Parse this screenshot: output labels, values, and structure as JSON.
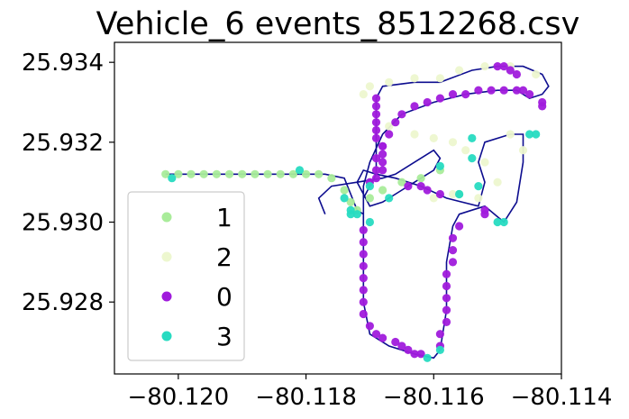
{
  "chart_data": {
    "type": "scatter",
    "title": "Vehicle_6 events_8512268.csv",
    "xlabel": "",
    "ylabel": "",
    "xlim": [
      -80.121,
      -80.114
    ],
    "ylim": [
      25.9262,
      25.9345
    ],
    "x_ticks": [
      "−80.120",
      "−80.118",
      "−80.116",
      "−80.114"
    ],
    "y_ticks": [
      "25.928",
      "25.930",
      "25.932",
      "25.934"
    ],
    "x_tick_values": [
      -80.12,
      -80.118,
      -80.116,
      -80.114
    ],
    "y_tick_values": [
      25.928,
      25.93,
      25.932,
      25.934
    ],
    "grid": false,
    "legend_position": "lower-left",
    "track": {
      "color": "#0d0d8f",
      "points": [
        [
          -80.1202,
          25.9312
        ],
        [
          -80.1195,
          25.9312
        ],
        [
          -80.1188,
          25.9312
        ],
        [
          -80.1182,
          25.9312
        ],
        [
          -80.1177,
          25.9312
        ],
        [
          -80.1174,
          25.9311
        ],
        [
          -80.1173,
          25.9307
        ],
        [
          -80.1172,
          25.9303
        ],
        [
          -80.1171,
          25.9302
        ],
        [
          -80.1171,
          25.9306
        ],
        [
          -80.117,
          25.9309
        ],
        [
          -80.1169,
          25.9312
        ],
        [
          -80.1169,
          25.9318
        ],
        [
          -80.1169,
          25.9325
        ],
        [
          -80.1169,
          25.9331
        ],
        [
          -80.1168,
          25.9334
        ],
        [
          -80.1163,
          25.9335
        ],
        [
          -80.1159,
          25.9335
        ],
        [
          -80.1154,
          25.9338
        ],
        [
          -80.115,
          25.9339
        ],
        [
          -80.1146,
          25.9339
        ],
        [
          -80.1143,
          25.9337
        ],
        [
          -80.1142,
          25.9334
        ],
        [
          -80.1143,
          25.9332
        ],
        [
          -80.1145,
          25.9331
        ],
        [
          -80.1147,
          25.9333
        ],
        [
          -80.115,
          25.9333
        ],
        [
          -80.1155,
          25.9332
        ],
        [
          -80.116,
          25.933
        ],
        [
          -80.1165,
          25.9327
        ],
        [
          -80.1168,
          25.9322
        ],
        [
          -80.117,
          25.9315
        ],
        [
          -80.1171,
          25.9309
        ],
        [
          -80.1171,
          25.93
        ],
        [
          -80.1171,
          25.929
        ],
        [
          -80.1171,
          25.928
        ],
        [
          -80.117,
          25.9272
        ],
        [
          -80.1167,
          25.9269
        ],
        [
          -80.1163,
          25.9267
        ],
        [
          -80.116,
          25.9266
        ],
        [
          -80.1159,
          25.9268
        ],
        [
          -80.1158,
          25.9278
        ],
        [
          -80.1158,
          25.929
        ],
        [
          -80.1157,
          25.9299
        ],
        [
          -80.1156,
          25.9302
        ],
        [
          -80.1154,
          25.9303
        ],
        [
          -80.1152,
          25.9304
        ],
        [
          -80.1149,
          25.93
        ],
        [
          -80.1147,
          25.9305
        ],
        [
          -80.1146,
          25.9315
        ],
        [
          -80.1146,
          25.9322
        ],
        [
          -80.1148,
          25.9322
        ],
        [
          -80.1152,
          25.932
        ],
        [
          -80.1153,
          25.9315
        ],
        [
          -80.1152,
          25.931
        ],
        [
          -80.1153,
          25.9304
        ],
        [
          -80.1158,
          25.9306
        ],
        [
          -80.1162,
          25.9309
        ],
        [
          -80.1166,
          25.9311
        ],
        [
          -80.1169,
          25.9312
        ],
        [
          -80.1171,
          25.9313
        ],
        [
          -80.1172,
          25.931
        ],
        [
          -80.117,
          25.9304
        ],
        [
          -80.1168,
          25.9305
        ],
        [
          -80.1165,
          25.9308
        ],
        [
          -80.1163,
          25.931
        ],
        [
          -80.1161,
          25.9312
        ],
        [
          -80.116,
          25.9313
        ],
        [
          -80.1159,
          25.9316
        ],
        [
          -80.116,
          25.9318
        ],
        [
          -80.1162,
          25.9316
        ],
        [
          -80.1164,
          25.9314
        ],
        [
          -80.1166,
          25.9312
        ],
        [
          -80.1168,
          25.9311
        ],
        [
          -80.1172,
          25.931
        ],
        [
          -80.1176,
          25.9309
        ],
        [
          -80.1178,
          25.9306
        ],
        [
          -80.1177,
          25.9302
        ]
      ]
    },
    "series": [
      {
        "name": "1",
        "color": "#a9ec9a",
        "points": [
          [
            -80.1202,
            25.9312
          ],
          [
            -80.12,
            25.9312
          ],
          [
            -80.1198,
            25.9312
          ],
          [
            -80.1196,
            25.9312
          ],
          [
            -80.1194,
            25.9312
          ],
          [
            -80.1192,
            25.9312
          ],
          [
            -80.119,
            25.9312
          ],
          [
            -80.1188,
            25.9312
          ],
          [
            -80.1186,
            25.9312
          ],
          [
            -80.1184,
            25.9312
          ],
          [
            -80.1182,
            25.9312
          ],
          [
            -80.118,
            25.9312
          ],
          [
            -80.1178,
            25.9312
          ],
          [
            -80.1176,
            25.9311
          ],
          [
            -80.1174,
            25.9308
          ],
          [
            -80.1173,
            25.9305
          ],
          [
            -80.1172,
            25.9303
          ],
          [
            -80.117,
            25.9306
          ],
          [
            -80.1168,
            25.9308
          ],
          [
            -80.1165,
            25.931
          ],
          [
            -80.1162,
            25.9311
          ],
          [
            -80.1159,
            25.9313
          ],
          [
            -80.1156,
            25.9307
          ]
        ]
      },
      {
        "name": "2",
        "color": "#edf7cf",
        "points": [
          [
            -80.1171,
            25.9332
          ],
          [
            -80.117,
            25.9334
          ],
          [
            -80.1167,
            25.9335
          ],
          [
            -80.1163,
            25.9336
          ],
          [
            -80.1159,
            25.9336
          ],
          [
            -80.1156,
            25.9338
          ],
          [
            -80.1152,
            25.9339
          ],
          [
            -80.1148,
            25.9339
          ],
          [
            -80.1144,
            25.9337
          ],
          [
            -80.1152,
            25.9315
          ],
          [
            -80.115,
            25.931
          ],
          [
            -80.1148,
            25.9322
          ],
          [
            -80.1146,
            25.9318
          ],
          [
            -80.1167,
            25.9324
          ],
          [
            -80.1163,
            25.9322
          ],
          [
            -80.116,
            25.9321
          ],
          [
            -80.1157,
            25.932
          ],
          [
            -80.1155,
            25.9318
          ],
          [
            -80.116,
            25.9306
          ],
          [
            -80.1157,
            25.9307
          ],
          [
            -80.1153,
            25.9306
          ]
        ]
      },
      {
        "name": "0",
        "color": "#a01bdc",
        "points": [
          [
            -80.1169,
            25.9331
          ],
          [
            -80.1169,
            25.9329
          ],
          [
            -80.1169,
            25.9327
          ],
          [
            -80.1169,
            25.9325
          ],
          [
            -80.1169,
            25.9323
          ],
          [
            -80.1169,
            25.9321
          ],
          [
            -80.1168,
            25.9319
          ],
          [
            -80.1168,
            25.9317
          ],
          [
            -80.1168,
            25.9315
          ],
          [
            -80.1168,
            25.9313
          ],
          [
            -80.1169,
            25.9311
          ],
          [
            -80.1171,
            25.9298
          ],
          [
            -80.1171,
            25.9295
          ],
          [
            -80.1171,
            25.9292
          ],
          [
            -80.1171,
            25.9289
          ],
          [
            -80.1171,
            25.9286
          ],
          [
            -80.1171,
            25.9283
          ],
          [
            -80.1171,
            25.928
          ],
          [
            -80.1171,
            25.9277
          ],
          [
            -80.117,
            25.9274
          ],
          [
            -80.1169,
            25.9272
          ],
          [
            -80.1168,
            25.9271
          ],
          [
            -80.1166,
            25.927
          ],
          [
            -80.1165,
            25.9269
          ],
          [
            -80.1164,
            25.9268
          ],
          [
            -80.1163,
            25.9267
          ],
          [
            -80.1162,
            25.9267
          ],
          [
            -80.1159,
            25.9269
          ],
          [
            -80.1159,
            25.9272
          ],
          [
            -80.1158,
            25.9275
          ],
          [
            -80.1158,
            25.9278
          ],
          [
            -80.1158,
            25.9281
          ],
          [
            -80.1158,
            25.9284
          ],
          [
            -80.1158,
            25.9287
          ],
          [
            -80.1157,
            25.929
          ],
          [
            -80.1157,
            25.9293
          ],
          [
            -80.1157,
            25.9296
          ],
          [
            -80.1156,
            25.9299
          ],
          [
            -80.115,
            25.9339
          ],
          [
            -80.1149,
            25.9339
          ],
          [
            -80.1148,
            25.9338
          ],
          [
            -80.1147,
            25.9337
          ],
          [
            -80.1146,
            25.9333
          ],
          [
            -80.1147,
            25.9333
          ],
          [
            -80.1145,
            25.9332
          ],
          [
            -80.1143,
            25.933
          ],
          [
            -80.1143,
            25.9329
          ],
          [
            -80.1149,
            25.9333
          ],
          [
            -80.1151,
            25.9333
          ],
          [
            -80.1153,
            25.9333
          ],
          [
            -80.1155,
            25.9332
          ],
          [
            -80.1157,
            25.9332
          ],
          [
            -80.1159,
            25.9331
          ],
          [
            -80.1161,
            25.933
          ],
          [
            -80.1163,
            25.9329
          ],
          [
            -80.1165,
            25.9327
          ],
          [
            -80.1166,
            25.9325
          ],
          [
            -80.1167,
            25.9322
          ],
          [
            -80.1168,
            25.9319
          ],
          [
            -80.1169,
            25.9316
          ],
          [
            -80.1169,
            25.9313
          ],
          [
            -80.117,
            25.931
          ],
          [
            -80.1164,
            25.9309
          ],
          [
            -80.1162,
            25.9309
          ],
          [
            -80.1161,
            25.9308
          ],
          [
            -80.1159,
            25.9307
          ],
          [
            -80.1152,
            25.9303
          ],
          [
            -80.1152,
            25.9302
          ]
        ]
      },
      {
        "name": "3",
        "color": "#27dbc1",
        "points": [
          [
            -80.1201,
            25.9311
          ],
          [
            -80.1181,
            25.9313
          ],
          [
            -80.1173,
            25.9303
          ],
          [
            -80.1173,
            25.9302
          ],
          [
            -80.1172,
            25.9302
          ],
          [
            -80.1174,
            25.9306
          ],
          [
            -80.117,
            25.9309
          ],
          [
            -80.1167,
            25.9306
          ],
          [
            -80.1159,
            25.9314
          ],
          [
            -80.117,
            25.93
          ],
          [
            -80.1159,
            25.9268
          ],
          [
            -80.1161,
            25.9266
          ],
          [
            -80.1154,
            25.9321
          ],
          [
            -80.1154,
            25.9316
          ],
          [
            -80.1153,
            25.9309
          ],
          [
            -80.1156,
            25.9307
          ],
          [
            -80.115,
            25.93
          ],
          [
            -80.1149,
            25.93
          ],
          [
            -80.1144,
            25.9322
          ],
          [
            -80.1145,
            25.9322
          ]
        ]
      }
    ]
  }
}
